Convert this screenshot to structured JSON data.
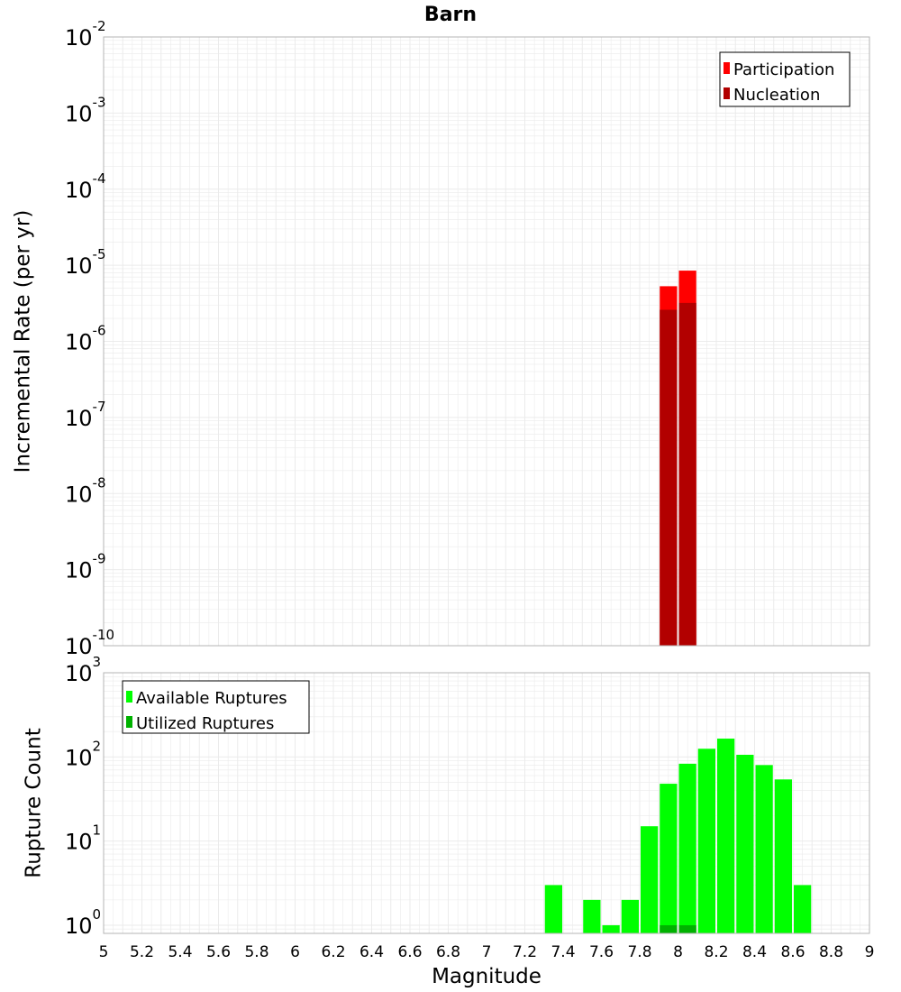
{
  "title": "Barn",
  "colors": {
    "participation": "#ff0000",
    "nucleation": "#b20000",
    "available": "#00ff00",
    "utilized": "#00b200",
    "grid": "#ebebeb",
    "frame": "#b4b4b4"
  },
  "chart_data": [
    {
      "type": "bar",
      "panel": "top",
      "xlabel": "",
      "ylabel": "Incremental Rate (per yr)",
      "yscale": "log",
      "ylim": [
        1e-10,
        0.01
      ],
      "xlim": [
        5,
        9
      ],
      "grid": true,
      "legend_position": "top-right",
      "bar_width": 0.1,
      "y_ticks": [
        {
          "base": "10",
          "exp": "-10",
          "value": 1e-10
        },
        {
          "base": "10",
          "exp": "-9",
          "value": 1e-09
        },
        {
          "base": "10",
          "exp": "-8",
          "value": 1e-08
        },
        {
          "base": "10",
          "exp": "-7",
          "value": 1e-07
        },
        {
          "base": "10",
          "exp": "-6",
          "value": 1e-06
        },
        {
          "base": "10",
          "exp": "-5",
          "value": 1e-05
        },
        {
          "base": "10",
          "exp": "-4",
          "value": 0.0001
        },
        {
          "base": "10",
          "exp": "-3",
          "value": 0.001
        },
        {
          "base": "10",
          "exp": "-2",
          "value": 0.01
        }
      ],
      "series": [
        {
          "name": "Participation",
          "x": [
            7.95,
            8.05
          ],
          "values": [
            5.3e-06,
            8.5e-06
          ]
        },
        {
          "name": "Nucleation",
          "x": [
            7.95,
            8.05
          ],
          "values": [
            2.6e-06,
            3.2e-06
          ]
        }
      ]
    },
    {
      "type": "bar",
      "panel": "bottom",
      "xlabel": "Magnitude",
      "ylabel": "Rupture Count",
      "yscale": "log",
      "ylim": [
        0.8,
        1000
      ],
      "xlim": [
        5,
        9
      ],
      "grid": true,
      "legend_position": "top-left",
      "bar_width": 0.1,
      "x_ticks": [
        "5",
        "5.2",
        "5.4",
        "5.6",
        "5.8",
        "6",
        "6.2",
        "6.4",
        "6.6",
        "6.8",
        "7",
        "7.2",
        "7.4",
        "7.6",
        "7.8",
        "8",
        "8.2",
        "8.4",
        "8.6",
        "8.8",
        "9"
      ],
      "y_ticks": [
        {
          "base": "10",
          "exp": "0",
          "value": 1
        },
        {
          "base": "10",
          "exp": "1",
          "value": 10
        },
        {
          "base": "10",
          "exp": "2",
          "value": 100
        },
        {
          "base": "10",
          "exp": "3",
          "value": 1000
        }
      ],
      "series": [
        {
          "name": "Available Ruptures",
          "x": [
            7.35,
            7.55,
            7.65,
            7.75,
            7.85,
            7.95,
            8.05,
            8.15,
            8.25,
            8.35,
            8.45,
            8.55,
            8.65
          ],
          "values": [
            3,
            2,
            1,
            2,
            15,
            48,
            83,
            125,
            165,
            106,
            80,
            54,
            3
          ]
        },
        {
          "name": "Utilized Ruptures",
          "x": [
            7.95,
            8.05
          ],
          "values": [
            1,
            1
          ]
        }
      ]
    }
  ]
}
